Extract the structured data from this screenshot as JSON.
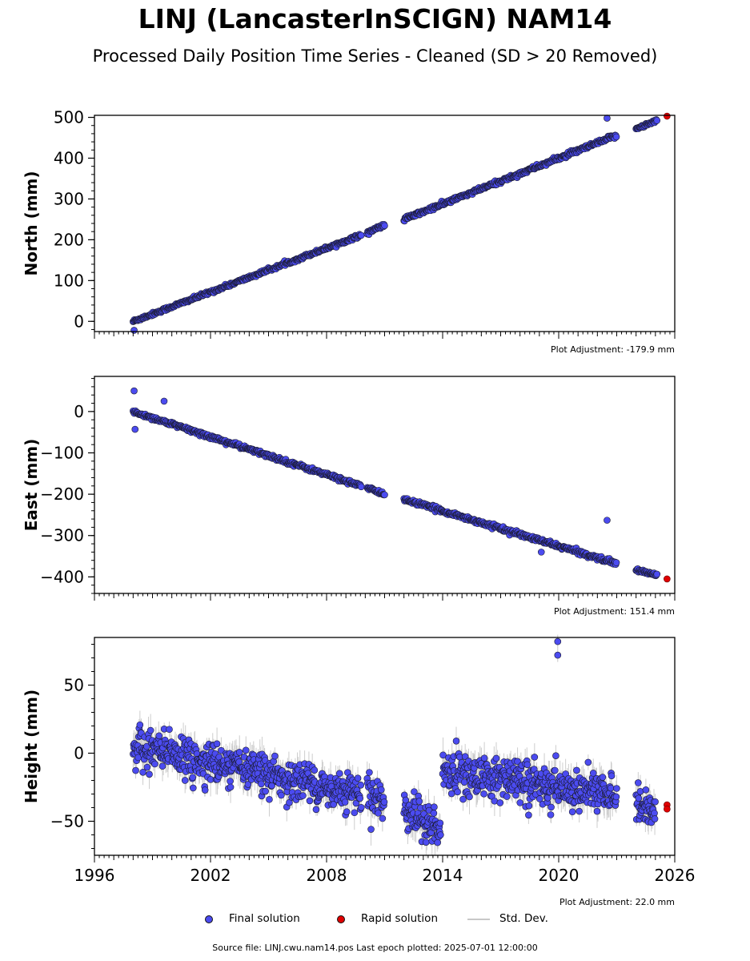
{
  "title": "LINJ (LancasterInSCIGN) NAM14",
  "subtitle": "Processed Daily Position Time Series - Cleaned (SD > 20 Removed)",
  "colors": {
    "final": "#4b4bf0",
    "rapid": "#e00000",
    "stddev": "#c8c8c8",
    "edge": "#1a1a2e"
  },
  "legend": {
    "final": "Final solution",
    "rapid": "Rapid solution",
    "stddev": "Std. Dev."
  },
  "source": "Source file: LINJ.cwu.nam14.pos  Last epoch plotted: 2025-07-01 12:00:00",
  "chart_data": [
    {
      "type": "scatter",
      "ylabel": "North (mm)",
      "adjustment": "Plot Adjustment: -179.9 mm",
      "xlim": [
        1996,
        2026
      ],
      "ylim": [
        -25,
        505
      ],
      "yticks": [
        0,
        100,
        200,
        300,
        400,
        500
      ],
      "xticks": [],
      "segments": [
        {
          "from": 1998.0,
          "to": 2009.8,
          "y0": 0,
          "y1": 212,
          "noise": 2.0
        },
        {
          "from": 2010.1,
          "to": 2011.0,
          "y0": 218,
          "y1": 236,
          "noise": 2.0
        },
        {
          "from": 2012.0,
          "to": 2023.0,
          "y0": 250,
          "y1": 456,
          "noise": 2.5
        },
        {
          "from": 2024.0,
          "to": 2025.1,
          "y0": 473,
          "y1": 492,
          "noise": 2.0
        }
      ],
      "outliers": [
        {
          "x": 1998.05,
          "y": -22
        },
        {
          "x": 2022.5,
          "y": 498
        }
      ],
      "rapid": [
        {
          "x": 2025.6,
          "y": 503
        }
      ]
    },
    {
      "type": "scatter",
      "ylabel": "East (mm)",
      "adjustment": "Plot Adjustment: 151.4 mm",
      "xlim": [
        1996,
        2026
      ],
      "ylim": [
        -440,
        85
      ],
      "yticks": [
        0,
        -100,
        -200,
        -300,
        -400
      ],
      "ytick_labels": [
        "0",
        "−100",
        "−200",
        "−300",
        "−400"
      ],
      "xticks": [],
      "segments": [
        {
          "from": 1998.0,
          "to": 2009.8,
          "y0": 0,
          "y1": -180,
          "noise": 2.5
        },
        {
          "from": 2010.1,
          "to": 2011.0,
          "y0": -185,
          "y1": -200,
          "noise": 2.0
        },
        {
          "from": 2012.0,
          "to": 2023.0,
          "y0": -212,
          "y1": -368,
          "noise": 2.5
        },
        {
          "from": 2024.0,
          "to": 2025.1,
          "y0": -383,
          "y1": -396,
          "noise": 2.0
        }
      ],
      "outliers": [
        {
          "x": 1998.05,
          "y": 50
        },
        {
          "x": 1998.1,
          "y": -43
        },
        {
          "x": 1999.6,
          "y": 25
        },
        {
          "x": 2022.5,
          "y": -263
        },
        {
          "x": 2019.1,
          "y": -340
        }
      ],
      "rapid": [
        {
          "x": 2025.6,
          "y": -405
        }
      ]
    },
    {
      "type": "scatter",
      "ylabel": "Height (mm)",
      "adjustment": "Plot Adjustment: 22.0 mm",
      "xlim": [
        1996,
        2026
      ],
      "ylim": [
        -75,
        85
      ],
      "yticks": [
        50,
        0,
        -50
      ],
      "ytick_labels": [
        "50",
        "0",
        "−50"
      ],
      "xticks": [
        1996,
        2002,
        2008,
        2014,
        2020,
        2026
      ],
      "xtick_labels": [
        "1996",
        "2002",
        "2008",
        "2014",
        "2020",
        "2026"
      ],
      "segments": [
        {
          "from": 1998.0,
          "to": 2009.8,
          "y0": 5,
          "y1": -30,
          "noise": 7.0
        },
        {
          "from": 2010.1,
          "to": 2011.0,
          "y0": -25,
          "y1": -38,
          "noise": 7.0
        },
        {
          "from": 2012.0,
          "to": 2013.9,
          "y0": -40,
          "y1": -58,
          "noise": 7.0
        },
        {
          "from": 2014.0,
          "to": 2023.0,
          "y0": -12,
          "y1": -32,
          "noise": 7.0
        },
        {
          "from": 2024.0,
          "to": 2025.0,
          "y0": -35,
          "y1": -45,
          "noise": 6.0
        }
      ],
      "outliers": [
        {
          "x": 2019.95,
          "y": 82
        },
        {
          "x": 2019.95,
          "y": 72
        }
      ],
      "rapid": [
        {
          "x": 2025.6,
          "y": -38
        },
        {
          "x": 2025.6,
          "y": -41
        }
      ]
    }
  ]
}
